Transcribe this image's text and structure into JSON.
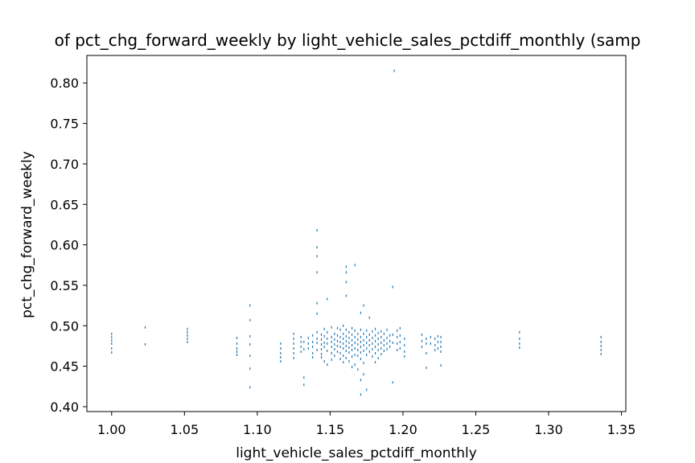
{
  "chart_data": {
    "type": "scatter",
    "title": "of pct_chg_forward_weekly by light_vehicle_sales_pctdiff_monthly (samp",
    "xlabel": "light_vehicle_sales_pctdiff_monthly",
    "ylabel": "pct_chg_forward_weekly",
    "xlim": [
      0.983,
      1.353
    ],
    "ylim": [
      0.394,
      0.834
    ],
    "xticks": [
      "1.00",
      "1.05",
      "1.10",
      "1.15",
      "1.20",
      "1.25",
      "1.30",
      "1.35"
    ],
    "yticks": [
      "0.40",
      "0.45",
      "0.50",
      "0.55",
      "0.60",
      "0.65",
      "0.70",
      "0.75",
      "0.80"
    ],
    "grid": false,
    "marker_color": "#1f77b4",
    "points": [
      [
        1.0,
        0.49
      ],
      [
        1.0,
        0.486
      ],
      [
        1.0,
        0.482
      ],
      [
        1.0,
        0.478
      ],
      [
        1.0,
        0.472
      ],
      [
        1.0,
        0.467
      ],
      [
        1.023,
        0.498
      ],
      [
        1.023,
        0.477
      ],
      [
        1.052,
        0.496
      ],
      [
        1.052,
        0.492
      ],
      [
        1.052,
        0.488
      ],
      [
        1.052,
        0.484
      ],
      [
        1.052,
        0.48
      ],
      [
        1.086,
        0.485
      ],
      [
        1.086,
        0.478
      ],
      [
        1.086,
        0.472
      ],
      [
        1.086,
        0.468
      ],
      [
        1.086,
        0.464
      ],
      [
        1.095,
        0.525
      ],
      [
        1.095,
        0.507
      ],
      [
        1.095,
        0.487
      ],
      [
        1.095,
        0.477
      ],
      [
        1.095,
        0.463
      ],
      [
        1.095,
        0.447
      ],
      [
        1.095,
        0.424
      ],
      [
        1.116,
        0.478
      ],
      [
        1.116,
        0.472
      ],
      [
        1.116,
        0.466
      ],
      [
        1.116,
        0.461
      ],
      [
        1.116,
        0.456
      ],
      [
        1.125,
        0.49
      ],
      [
        1.125,
        0.484
      ],
      [
        1.125,
        0.478
      ],
      [
        1.125,
        0.472
      ],
      [
        1.125,
        0.466
      ],
      [
        1.125,
        0.46
      ],
      [
        1.13,
        0.486
      ],
      [
        1.13,
        0.48
      ],
      [
        1.13,
        0.474
      ],
      [
        1.13,
        0.468
      ],
      [
        1.132,
        0.48
      ],
      [
        1.132,
        0.471
      ],
      [
        1.132,
        0.436
      ],
      [
        1.132,
        0.427
      ],
      [
        1.135,
        0.485
      ],
      [
        1.135,
        0.478
      ],
      [
        1.135,
        0.472
      ],
      [
        1.138,
        0.488
      ],
      [
        1.138,
        0.48
      ],
      [
        1.138,
        0.474
      ],
      [
        1.138,
        0.466
      ],
      [
        1.138,
        0.461
      ],
      [
        1.141,
        0.618
      ],
      [
        1.141,
        0.597
      ],
      [
        1.141,
        0.586
      ],
      [
        1.141,
        0.566
      ],
      [
        1.141,
        0.528
      ],
      [
        1.141,
        0.515
      ],
      [
        1.141,
        0.492
      ],
      [
        1.141,
        0.484
      ],
      [
        1.141,
        0.479
      ],
      [
        1.141,
        0.47
      ],
      [
        1.144,
        0.489
      ],
      [
        1.144,
        0.483
      ],
      [
        1.144,
        0.477
      ],
      [
        1.144,
        0.471
      ],
      [
        1.144,
        0.465
      ],
      [
        1.144,
        0.461
      ],
      [
        1.146,
        0.496
      ],
      [
        1.146,
        0.487
      ],
      [
        1.146,
        0.479
      ],
      [
        1.146,
        0.474
      ],
      [
        1.146,
        0.456
      ],
      [
        1.148,
        0.533
      ],
      [
        1.148,
        0.492
      ],
      [
        1.148,
        0.484
      ],
      [
        1.148,
        0.478
      ],
      [
        1.148,
        0.469
      ],
      [
        1.148,
        0.452
      ],
      [
        1.151,
        0.498
      ],
      [
        1.151,
        0.486
      ],
      [
        1.151,
        0.48
      ],
      [
        1.151,
        0.474
      ],
      [
        1.151,
        0.466
      ],
      [
        1.151,
        0.458
      ],
      [
        1.153,
        0.49
      ],
      [
        1.153,
        0.483
      ],
      [
        1.153,
        0.477
      ],
      [
        1.153,
        0.471
      ],
      [
        1.153,
        0.463
      ],
      [
        1.155,
        0.497
      ],
      [
        1.155,
        0.488
      ],
      [
        1.155,
        0.481
      ],
      [
        1.155,
        0.475
      ],
      [
        1.155,
        0.468
      ],
      [
        1.157,
        0.495
      ],
      [
        1.157,
        0.486
      ],
      [
        1.157,
        0.48
      ],
      [
        1.157,
        0.474
      ],
      [
        1.157,
        0.466
      ],
      [
        1.157,
        0.459
      ],
      [
        1.159,
        0.5
      ],
      [
        1.159,
        0.49
      ],
      [
        1.159,
        0.484
      ],
      [
        1.159,
        0.478
      ],
      [
        1.159,
        0.472
      ],
      [
        1.159,
        0.463
      ],
      [
        1.159,
        0.455
      ],
      [
        1.161,
        0.573
      ],
      [
        1.161,
        0.566
      ],
      [
        1.161,
        0.554
      ],
      [
        1.161,
        0.537
      ],
      [
        1.161,
        0.495
      ],
      [
        1.161,
        0.487
      ],
      [
        1.161,
        0.481
      ],
      [
        1.161,
        0.475
      ],
      [
        1.161,
        0.469
      ],
      [
        1.161,
        0.46
      ],
      [
        1.163,
        0.492
      ],
      [
        1.163,
        0.485
      ],
      [
        1.163,
        0.479
      ],
      [
        1.163,
        0.473
      ],
      [
        1.163,
        0.467
      ],
      [
        1.163,
        0.456
      ],
      [
        1.165,
        0.497
      ],
      [
        1.165,
        0.489
      ],
      [
        1.165,
        0.482
      ],
      [
        1.165,
        0.476
      ],
      [
        1.165,
        0.47
      ],
      [
        1.165,
        0.462
      ],
      [
        1.165,
        0.449
      ],
      [
        1.167,
        0.575
      ],
      [
        1.167,
        0.494
      ],
      [
        1.167,
        0.486
      ],
      [
        1.167,
        0.479
      ],
      [
        1.167,
        0.472
      ],
      [
        1.167,
        0.464
      ],
      [
        1.167,
        0.452
      ],
      [
        1.169,
        0.49
      ],
      [
        1.169,
        0.483
      ],
      [
        1.169,
        0.477
      ],
      [
        1.169,
        0.47
      ],
      [
        1.169,
        0.463
      ],
      [
        1.169,
        0.446
      ],
      [
        1.171,
        0.516
      ],
      [
        1.171,
        0.495
      ],
      [
        1.171,
        0.486
      ],
      [
        1.171,
        0.48
      ],
      [
        1.171,
        0.474
      ],
      [
        1.171,
        0.467
      ],
      [
        1.171,
        0.459
      ],
      [
        1.171,
        0.433
      ],
      [
        1.171,
        0.415
      ],
      [
        1.173,
        0.525
      ],
      [
        1.173,
        0.49
      ],
      [
        1.173,
        0.482
      ],
      [
        1.173,
        0.476
      ],
      [
        1.173,
        0.469
      ],
      [
        1.173,
        0.454
      ],
      [
        1.173,
        0.44
      ],
      [
        1.175,
        0.494
      ],
      [
        1.175,
        0.486
      ],
      [
        1.175,
        0.479
      ],
      [
        1.175,
        0.472
      ],
      [
        1.175,
        0.464
      ],
      [
        1.175,
        0.421
      ],
      [
        1.177,
        0.51
      ],
      [
        1.177,
        0.489
      ],
      [
        1.177,
        0.482
      ],
      [
        1.177,
        0.476
      ],
      [
        1.177,
        0.468
      ],
      [
        1.179,
        0.493
      ],
      [
        1.179,
        0.485
      ],
      [
        1.179,
        0.478
      ],
      [
        1.179,
        0.471
      ],
      [
        1.179,
        0.462
      ],
      [
        1.181,
        0.496
      ],
      [
        1.181,
        0.488
      ],
      [
        1.181,
        0.481
      ],
      [
        1.181,
        0.474
      ],
      [
        1.181,
        0.466
      ],
      [
        1.181,
        0.455
      ],
      [
        1.183,
        0.491
      ],
      [
        1.183,
        0.484
      ],
      [
        1.183,
        0.477
      ],
      [
        1.183,
        0.47
      ],
      [
        1.183,
        0.46
      ],
      [
        1.185,
        0.493
      ],
      [
        1.185,
        0.486
      ],
      [
        1.185,
        0.479
      ],
      [
        1.185,
        0.472
      ],
      [
        1.185,
        0.465
      ],
      [
        1.187,
        0.49
      ],
      [
        1.187,
        0.482
      ],
      [
        1.187,
        0.476
      ],
      [
        1.187,
        0.469
      ],
      [
        1.189,
        0.495
      ],
      [
        1.189,
        0.485
      ],
      [
        1.189,
        0.478
      ],
      [
        1.189,
        0.471
      ],
      [
        1.191,
        0.488
      ],
      [
        1.191,
        0.481
      ],
      [
        1.191,
        0.474
      ],
      [
        1.193,
        0.548
      ],
      [
        1.193,
        0.489
      ],
      [
        1.193,
        0.479
      ],
      [
        1.193,
        0.43
      ],
      [
        1.194,
        0.815
      ],
      [
        1.196,
        0.494
      ],
      [
        1.196,
        0.486
      ],
      [
        1.196,
        0.478
      ],
      [
        1.196,
        0.47
      ],
      [
        1.198,
        0.497
      ],
      [
        1.198,
        0.488
      ],
      [
        1.198,
        0.48
      ],
      [
        1.198,
        0.472
      ],
      [
        1.201,
        0.484
      ],
      [
        1.201,
        0.476
      ],
      [
        1.201,
        0.468
      ],
      [
        1.201,
        0.462
      ],
      [
        1.213,
        0.489
      ],
      [
        1.213,
        0.481
      ],
      [
        1.213,
        0.474
      ],
      [
        1.216,
        0.484
      ],
      [
        1.216,
        0.478
      ],
      [
        1.216,
        0.466
      ],
      [
        1.216,
        0.448
      ],
      [
        1.219,
        0.486
      ],
      [
        1.219,
        0.478
      ],
      [
        1.222,
        0.484
      ],
      [
        1.222,
        0.476
      ],
      [
        1.222,
        0.47
      ],
      [
        1.224,
        0.487
      ],
      [
        1.224,
        0.48
      ],
      [
        1.224,
        0.472
      ],
      [
        1.226,
        0.486
      ],
      [
        1.226,
        0.48
      ],
      [
        1.226,
        0.474
      ],
      [
        1.226,
        0.468
      ],
      [
        1.226,
        0.451
      ],
      [
        1.28,
        0.492
      ],
      [
        1.28,
        0.484
      ],
      [
        1.28,
        0.478
      ],
      [
        1.28,
        0.473
      ],
      [
        1.336,
        0.486
      ],
      [
        1.336,
        0.48
      ],
      [
        1.336,
        0.475
      ],
      [
        1.336,
        0.47
      ],
      [
        1.336,
        0.465
      ]
    ]
  }
}
